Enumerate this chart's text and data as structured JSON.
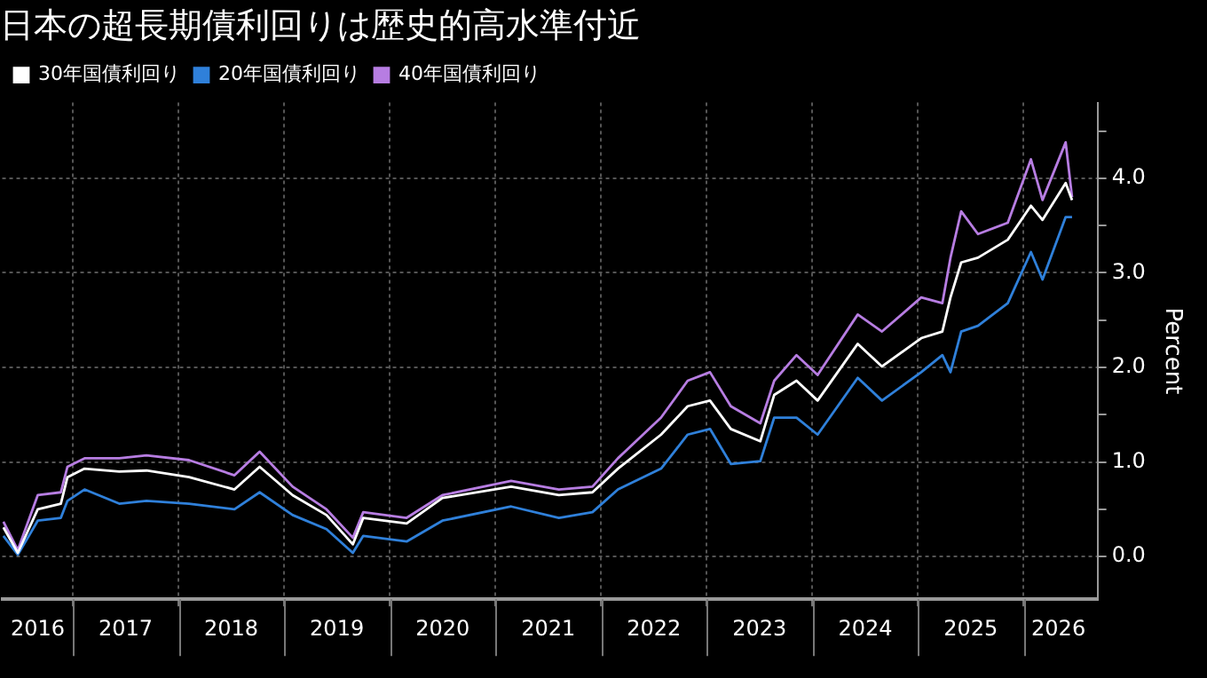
{
  "chart_data": {
    "type": "line",
    "title": "日本の超長期債利回りは歴史的高水準付近",
    "ylabel": "Percent",
    "x": [
      "2016-05-05",
      "2016-06-24",
      "2016-09-01",
      "2016-11-20",
      "2016-12-13",
      "2017-02-10",
      "2017-06-10",
      "2017-09-12",
      "2018-02-06",
      "2018-07-13",
      "2018-10-08",
      "2019-01-30",
      "2019-05-27",
      "2019-08-26",
      "2019-10-01",
      "2020-02-28",
      "2020-07-01",
      "2021-02-24",
      "2021-08-08",
      "2021-12-02",
      "2022-02-28",
      "2022-07-27",
      "2022-10-27",
      "2023-01-12",
      "2023-03-25",
      "2023-07-05",
      "2023-08-22",
      "2023-11-07",
      "2024-01-19",
      "2024-06-06",
      "2024-08-29",
      "2025-01-12",
      "2025-03-26",
      "2025-04-23",
      "2025-05-30",
      "2025-07-27",
      "2025-11-07",
      "2026-01-26",
      "2026-03-07",
      "2026-05-26",
      "2026-06-17"
    ],
    "series": [
      {
        "name": "30年国債利回り",
        "color": "#ffffff",
        "values": [
          0.31,
          0.04,
          0.5,
          0.56,
          0.84,
          0.93,
          0.9,
          0.91,
          0.84,
          0.71,
          0.95,
          0.65,
          0.44,
          0.13,
          0.41,
          0.35,
          0.62,
          0.74,
          0.65,
          0.68,
          0.93,
          1.29,
          1.59,
          1.65,
          1.35,
          1.22,
          1.71,
          1.86,
          1.65,
          2.25,
          2.01,
          2.31,
          2.38,
          2.74,
          3.11,
          3.16,
          3.35,
          3.71,
          3.56,
          3.95,
          3.77
        ]
      },
      {
        "name": "20年国債利回り",
        "color": "#2f80da",
        "values": [
          0.22,
          0.02,
          0.38,
          0.41,
          0.59,
          0.71,
          0.56,
          0.59,
          0.56,
          0.5,
          0.68,
          0.44,
          0.29,
          0.04,
          0.22,
          0.16,
          0.38,
          0.53,
          0.41,
          0.47,
          0.71,
          0.93,
          1.29,
          1.35,
          0.98,
          1.01,
          1.47,
          1.47,
          1.29,
          1.89,
          1.65,
          1.95,
          2.13,
          1.95,
          2.38,
          2.44,
          2.68,
          3.22,
          2.93,
          3.59,
          3.59
        ]
      },
      {
        "name": "40年国債利回り",
        "color": "#b77de2",
        "values": [
          0.37,
          0.07,
          0.65,
          0.68,
          0.95,
          1.04,
          1.04,
          1.07,
          1.02,
          0.86,
          1.11,
          0.74,
          0.5,
          0.2,
          0.47,
          0.41,
          0.65,
          0.8,
          0.71,
          0.74,
          1.04,
          1.47,
          1.86,
          1.95,
          1.59,
          1.41,
          1.86,
          2.13,
          1.92,
          2.56,
          2.38,
          2.74,
          2.68,
          3.16,
          3.65,
          3.41,
          3.53,
          4.2,
          3.77,
          4.38,
          3.8
        ]
      }
    ],
    "xlim": [
      "2016-05-01",
      "2026-09-13"
    ],
    "xticks": [
      {
        "value": "2016-09-01",
        "label": "2016"
      },
      {
        "value": "2017-01-01",
        "label": null
      },
      {
        "value": "2017-07-02",
        "label": "2017"
      },
      {
        "value": "2018-01-01",
        "label": null
      },
      {
        "value": "2018-07-02",
        "label": "2018"
      },
      {
        "value": "2019-01-01",
        "label": null
      },
      {
        "value": "2019-07-02",
        "label": "2019"
      },
      {
        "value": "2020-01-01",
        "label": null
      },
      {
        "value": "2020-07-02",
        "label": "2020"
      },
      {
        "value": "2021-01-01",
        "label": null
      },
      {
        "value": "2021-07-02",
        "label": "2021"
      },
      {
        "value": "2022-01-01",
        "label": null
      },
      {
        "value": "2022-07-02",
        "label": "2022"
      },
      {
        "value": "2023-01-01",
        "label": null
      },
      {
        "value": "2023-07-02",
        "label": "2023"
      },
      {
        "value": "2024-01-01",
        "label": null
      },
      {
        "value": "2024-07-02",
        "label": "2024"
      },
      {
        "value": "2025-01-01",
        "label": null
      },
      {
        "value": "2025-07-02",
        "label": "2025"
      },
      {
        "value": "2026-01-01",
        "label": null
      },
      {
        "value": "2026-05-01",
        "label": "2026"
      }
    ],
    "ylim": [
      -0.45,
      4.8
    ],
    "yticks": [
      {
        "value": 0,
        "label": "0.0"
      },
      {
        "value": 0.5,
        "label": null
      },
      {
        "value": 1,
        "label": "1.0"
      },
      {
        "value": 1.5,
        "label": null
      },
      {
        "value": 2,
        "label": "2.0"
      },
      {
        "value": 2.5,
        "label": null
      },
      {
        "value": 3,
        "label": "3.0"
      },
      {
        "value": 3.5,
        "label": null
      },
      {
        "value": 4,
        "label": "4.0"
      },
      {
        "value": 4.5,
        "label": null
      }
    ],
    "grid": true,
    "legend": "top left",
    "marker": "none",
    "line_style": "solid"
  }
}
